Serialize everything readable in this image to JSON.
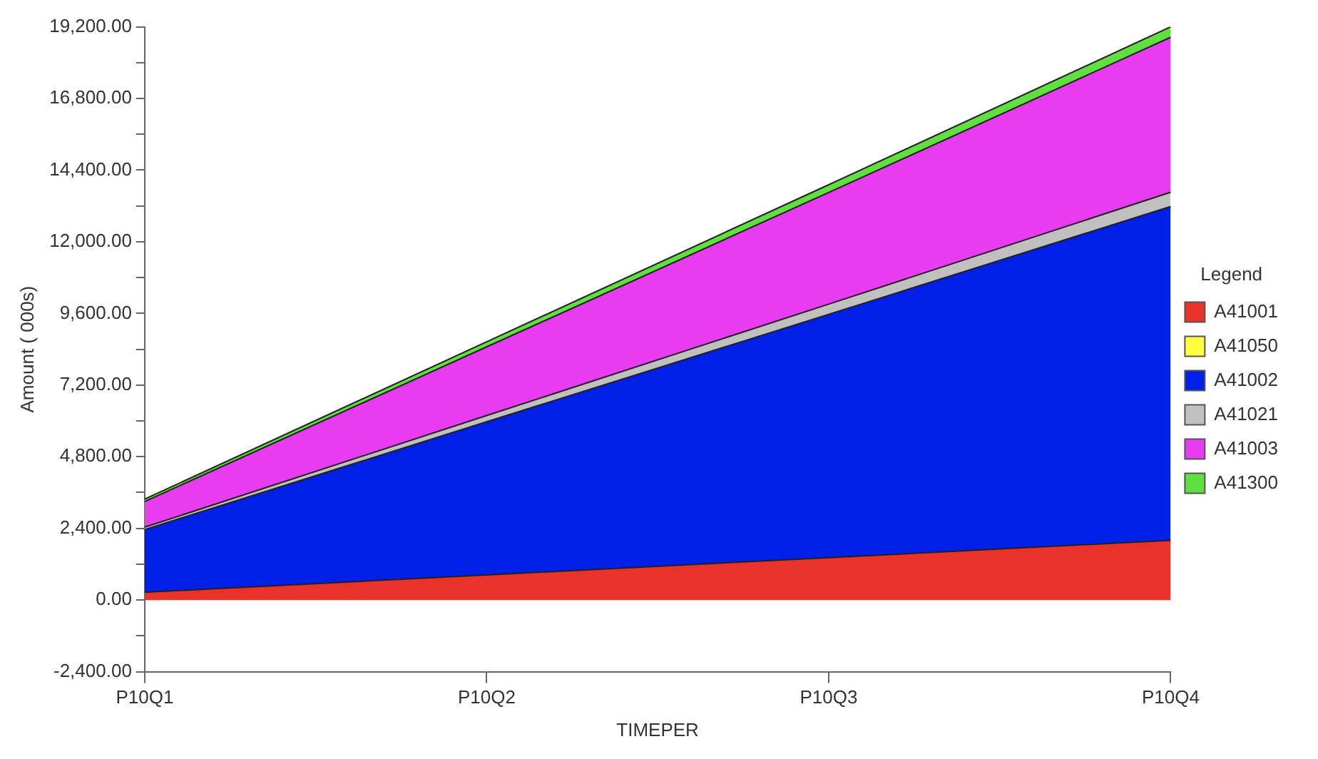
{
  "chart_data": {
    "type": "area",
    "stacked": true,
    "xlabel": "TIMEPER",
    "ylabel": "Amount ( 000s)",
    "legend_title": "Legend",
    "legend": "right",
    "grid": false,
    "categories": [
      "P10Q1",
      "P10Q2",
      "P10Q3",
      "P10Q4"
    ],
    "ylim": [
      -2400,
      19200
    ],
    "yticks": [
      {
        "value": -2400,
        "label": "-2,400.00"
      },
      {
        "value": -1200,
        "label": null
      },
      {
        "value": 0,
        "label": "0.00"
      },
      {
        "value": 1200,
        "label": null
      },
      {
        "value": 2400,
        "label": "2,400.00"
      },
      {
        "value": 3600,
        "label": null
      },
      {
        "value": 4800,
        "label": "4,800.00"
      },
      {
        "value": 6000,
        "label": null
      },
      {
        "value": 7200,
        "label": "7,200.00"
      },
      {
        "value": 8400,
        "label": null
      },
      {
        "value": 9600,
        "label": "9,600.00"
      },
      {
        "value": 10800,
        "label": null
      },
      {
        "value": 12000,
        "label": "12,000.00"
      },
      {
        "value": 13200,
        "label": null
      },
      {
        "value": 14400,
        "label": "14,400.00"
      },
      {
        "value": 15600,
        "label": null
      },
      {
        "value": 16800,
        "label": "16,800.00"
      },
      {
        "value": 18000,
        "label": null
      },
      {
        "value": 19200,
        "label": "19,200.00"
      }
    ],
    "series": [
      {
        "name": "A41001",
        "color": "#e8322a",
        "values": [
          260,
          840,
          1420,
          2000
        ]
      },
      {
        "name": "A41050",
        "color": "#ffff40",
        "values": [
          null,
          null,
          null,
          null
        ]
      },
      {
        "name": "A41002",
        "color": "#0020e8",
        "values": [
          2100,
          5130,
          8150,
          11180
        ]
      },
      {
        "name": "A41021",
        "color": "#c0c0c0",
        "values": [
          80,
          210,
          340,
          480
        ]
      },
      {
        "name": "A41003",
        "color": "#e83cf0",
        "values": [
          860,
          2300,
          3740,
          5190
        ]
      },
      {
        "name": "A41300",
        "color": "#60e040",
        "values": [
          80,
          170,
          260,
          350
        ]
      }
    ]
  }
}
